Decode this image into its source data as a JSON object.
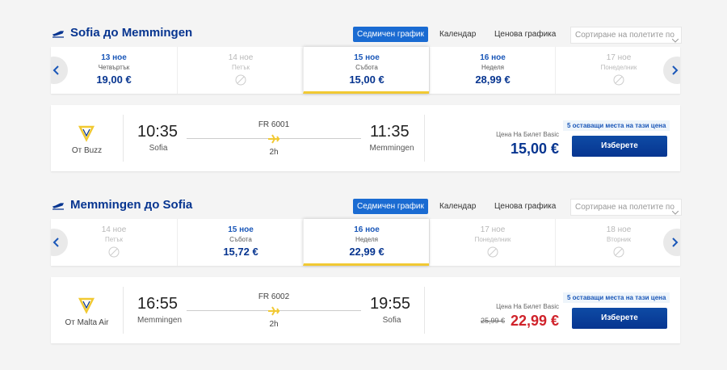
{
  "sections": [
    {
      "title": "Sofia до Memmingen",
      "tabs": [
        "Седмичен график",
        "Календар",
        "Ценова графика"
      ],
      "sort": "Сортиране на полетите по",
      "days": [
        {
          "date": "13 ное",
          "weekday": "Четвъртък",
          "price": "19,00 €"
        },
        {
          "date": "14 ное",
          "weekday": "Петък"
        },
        {
          "date": "15 ное",
          "weekday": "Събота",
          "price": "15,00 €",
          "selected": true
        },
        {
          "date": "16 ное",
          "weekday": "Неделя",
          "price": "28,99 €"
        },
        {
          "date": "17 ное",
          "weekday": "Понеделник"
        }
      ],
      "flight": {
        "airline": "От Buzz",
        "depart_time": "10:35",
        "depart_city": "Sofia",
        "flight_number": "FR 6001",
        "duration": "2h",
        "arrive_time": "11:35",
        "arrive_city": "Memmingen",
        "fare_label": "Цена На Билет Basic",
        "price": "15,00 €",
        "seats": "5 оставащи места на тази цена",
        "button": "Изберете"
      }
    },
    {
      "title": "Memmingen до Sofia",
      "tabs": [
        "Седмичен график",
        "Календар",
        "Ценова графика"
      ],
      "sort": "Сортиране на полетите по",
      "days": [
        {
          "date": "14 ное",
          "weekday": "Петък"
        },
        {
          "date": "15 ное",
          "weekday": "Събота",
          "price": "15,72 €"
        },
        {
          "date": "16 ное",
          "weekday": "Неделя",
          "price": "22,99 €",
          "selected": true
        },
        {
          "date": "17 ное",
          "weekday": "Понеделник"
        },
        {
          "date": "18 ное",
          "weekday": "Вторник"
        }
      ],
      "flight": {
        "airline": "От Malta Air",
        "depart_time": "16:55",
        "depart_city": "Memmingen",
        "flight_number": "FR 6002",
        "duration": "2h",
        "arrive_time": "19:55",
        "arrive_city": "Sofia",
        "fare_label": "Цена На Билет Basic",
        "old_price": "25,99 €",
        "price": "22,99 €",
        "seats": "5 оставащи места на тази цена",
        "button": "Изберете"
      }
    }
  ]
}
